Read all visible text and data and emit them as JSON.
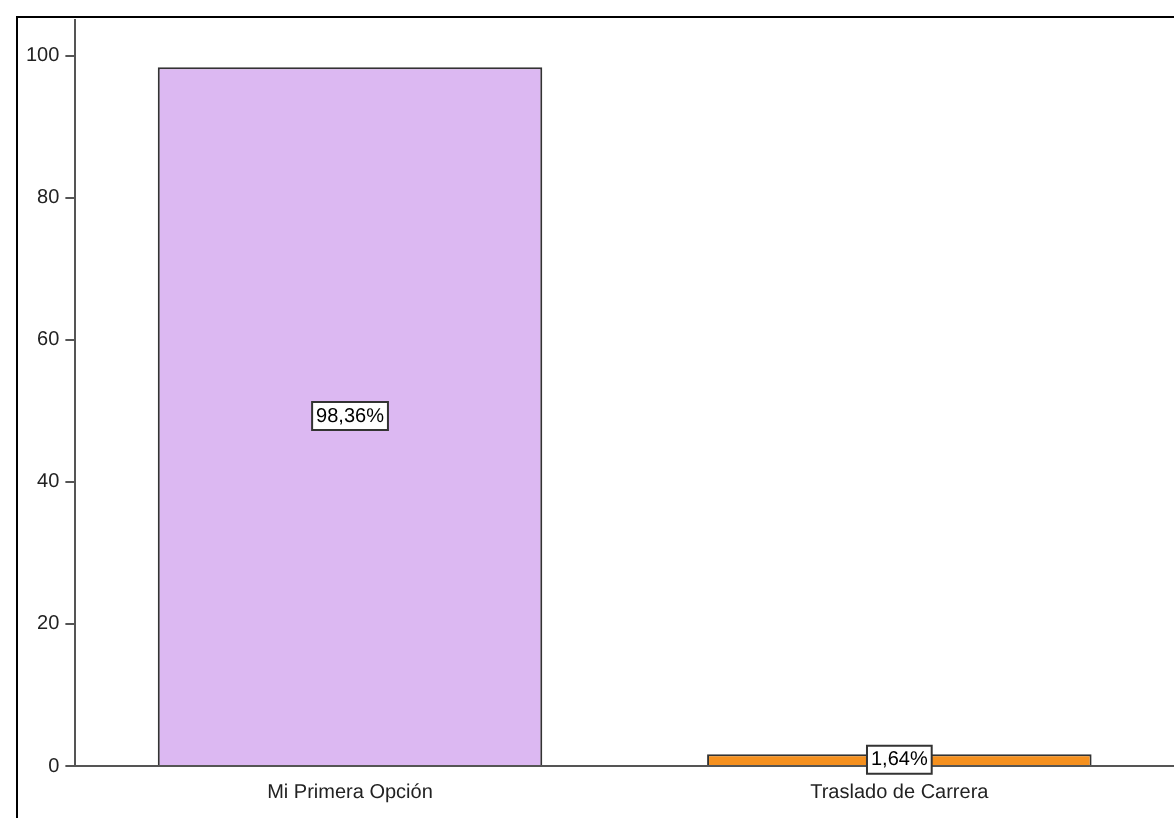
{
  "chart_data": {
    "type": "bar",
    "categories": [
      "Mi Primera Opción",
      "Traslado de Carrera"
    ],
    "values": [
      98.36,
      1.64
    ],
    "colors": [
      "#dcb8f2",
      "#f5901e"
    ],
    "value_labels": [
      "98,36%",
      "1,64%"
    ],
    "ylim": [
      0,
      105
    ],
    "yticks": [
      0,
      20,
      40,
      60,
      80,
      100
    ],
    "grid": false,
    "legend": false
  }
}
